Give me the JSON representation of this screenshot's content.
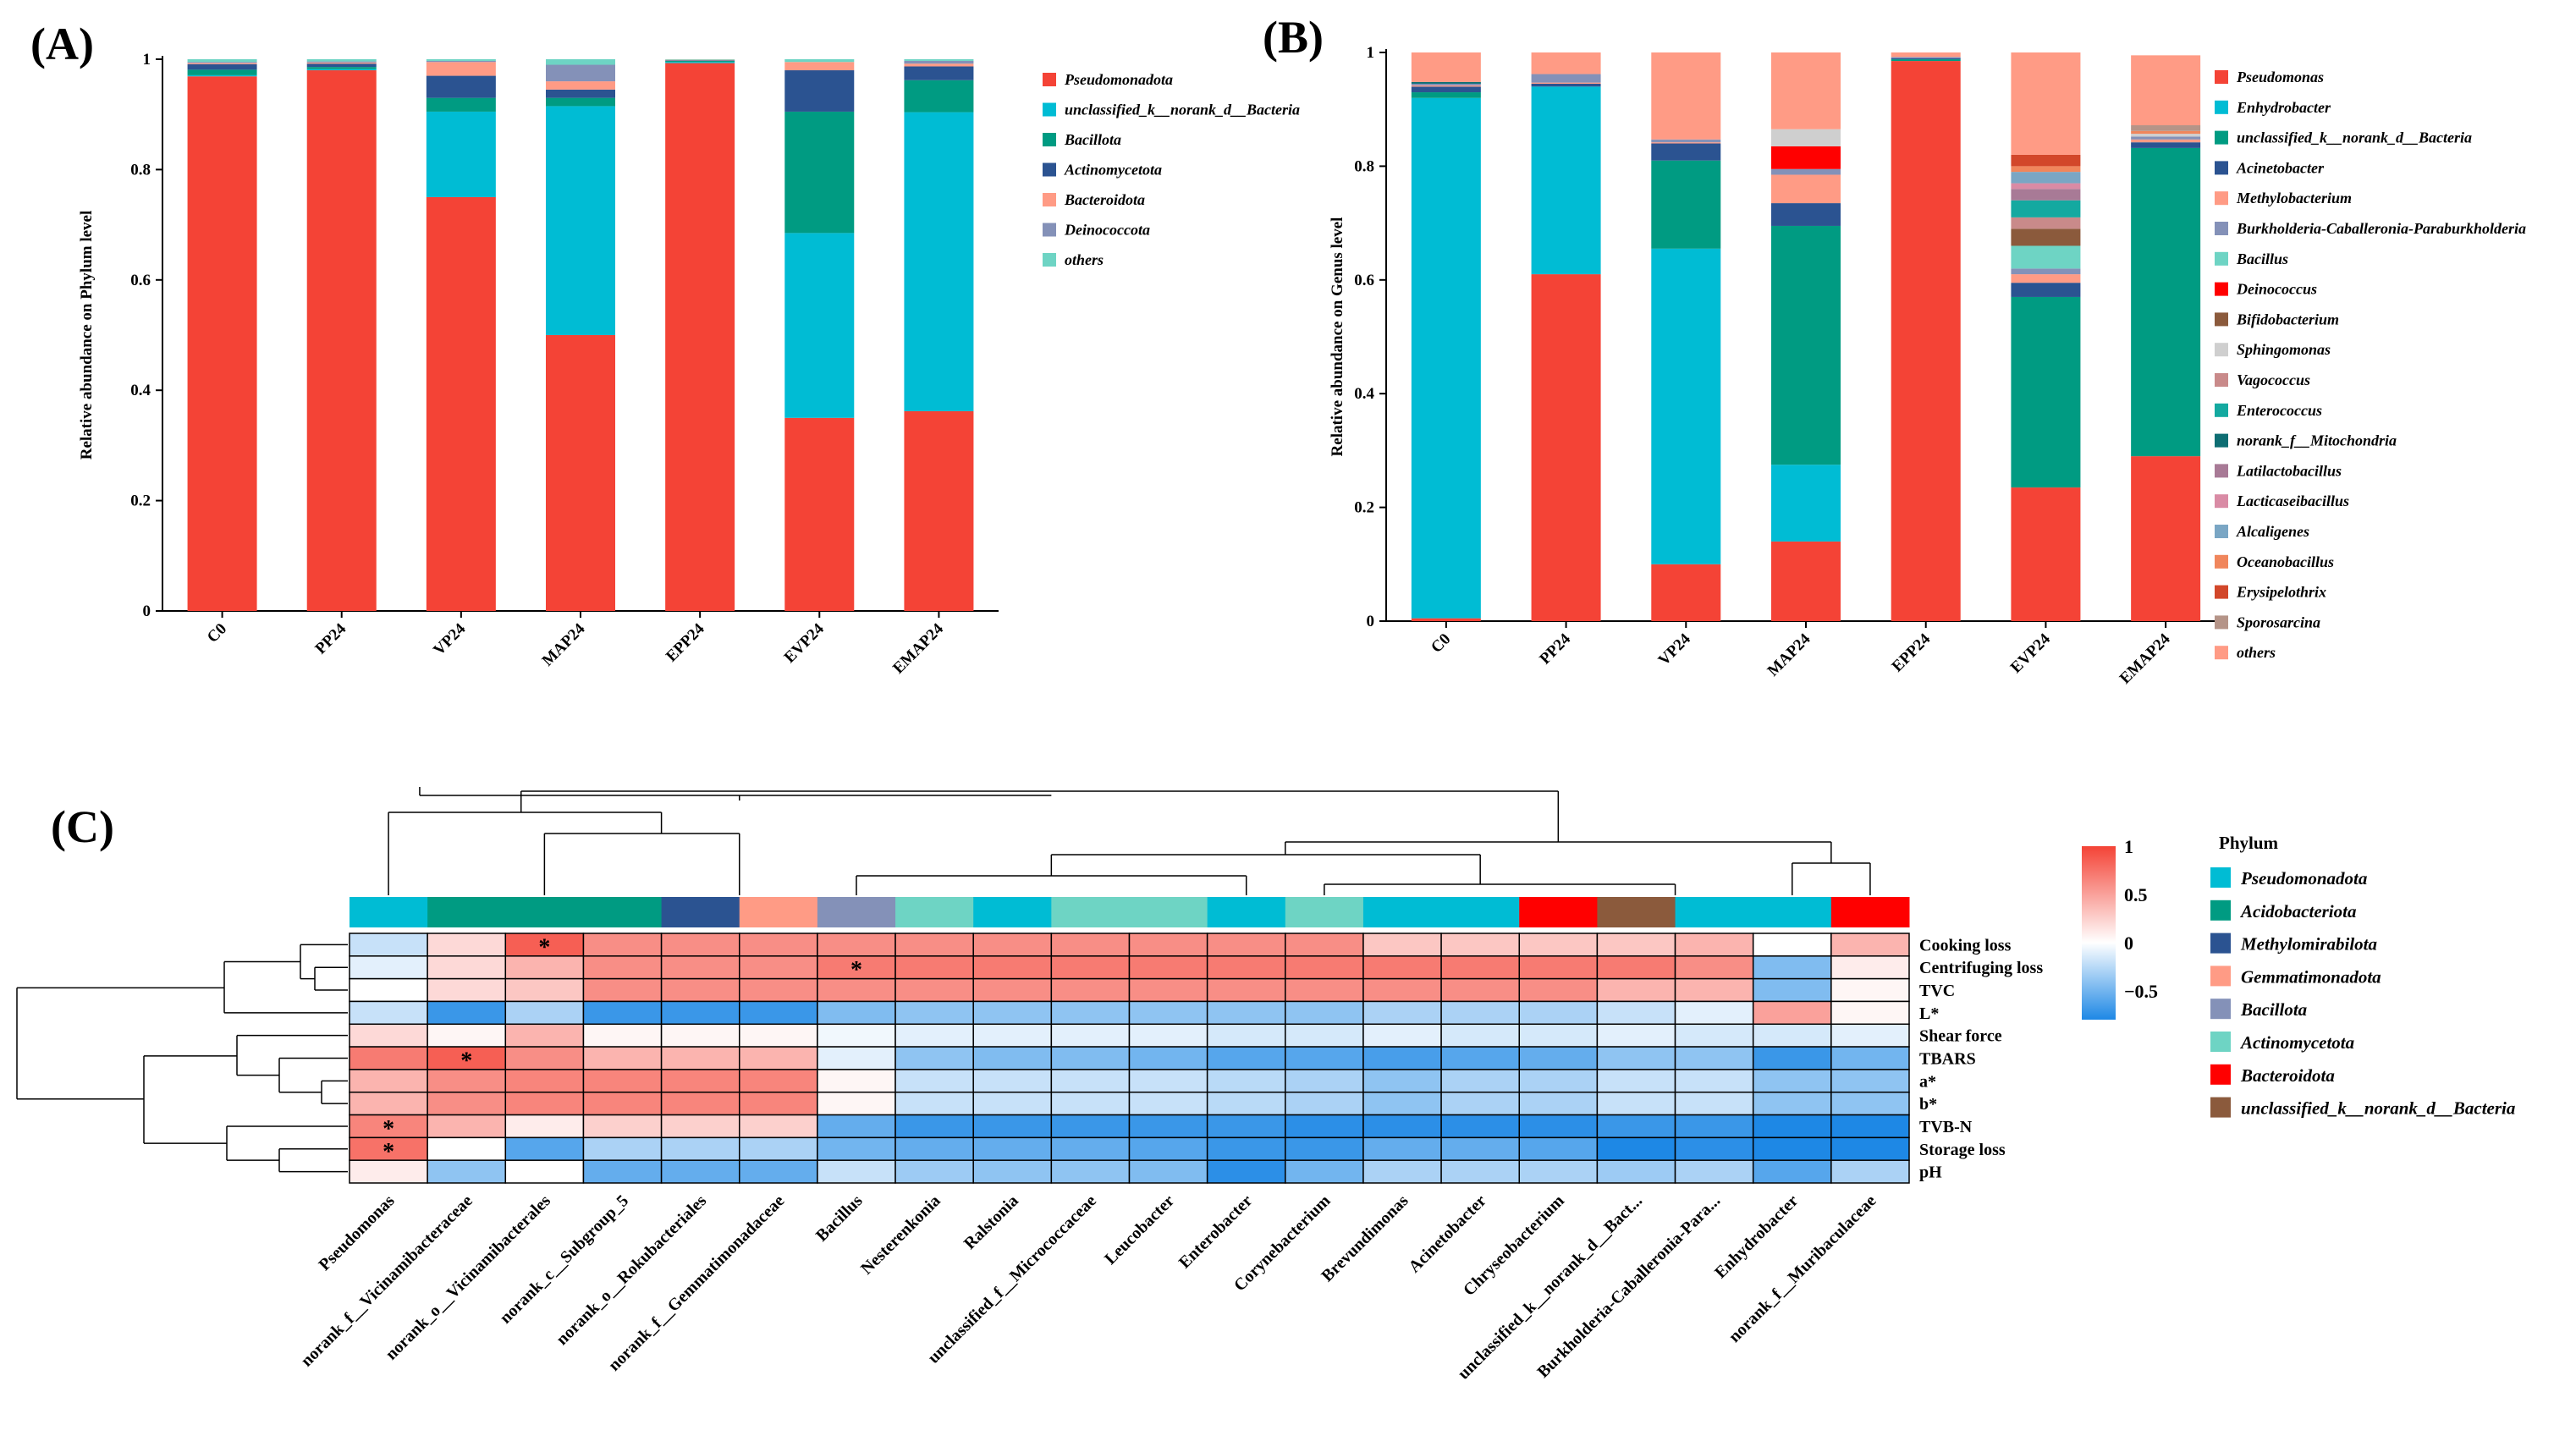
{
  "panels": {
    "a_label": "(A)",
    "b_label": "(B)",
    "c_label": "(C)"
  },
  "chart_data": [
    {
      "id": "A",
      "type": "bar",
      "stacked": true,
      "ylabel": "Relative abundance on Phylum level",
      "ylim": [
        0,
        1
      ],
      "yticks": [
        0,
        0.2,
        0.4,
        0.6,
        0.8,
        1
      ],
      "ytick_labels": [
        "0",
        "0.2",
        "0.4",
        "0.6",
        "0.8",
        "1"
      ],
      "categories": [
        "C0",
        "PP24",
        "VP24",
        "MAP24",
        "EPP24",
        "EVP24",
        "EMAP24"
      ],
      "legend_position": "right",
      "series": [
        {
          "name": "Pseudomonadota",
          "color": "#F44336",
          "values": [
            0.969,
            0.98,
            0.75,
            0.5,
            0.993,
            0.35,
            0.362
          ]
        },
        {
          "name": "unclassified_k__norank_d__Bacteria",
          "color": "#00BCD4",
          "values": [
            0.002,
            0.002,
            0.155,
            0.415,
            0.002,
            0.335,
            0.542
          ]
        },
        {
          "name": "Bacillota",
          "color": "#009B82",
          "values": [
            0.01,
            0.004,
            0.025,
            0.015,
            0.002,
            0.22,
            0.058
          ]
        },
        {
          "name": "Actinomycetota",
          "color": "#2B5391",
          "values": [
            0.01,
            0.006,
            0.04,
            0.015,
            0.001,
            0.075,
            0.025
          ]
        },
        {
          "name": "Bacteroidota",
          "color": "#FF9B85",
          "values": [
            0.002,
            0.002,
            0.025,
            0.015,
            0.001,
            0.015,
            0.005
          ]
        },
        {
          "name": "Deinococcota",
          "color": "#8491B8",
          "values": [
            0.002,
            0.002,
            0.002,
            0.03,
            0.0,
            0.0,
            0.005
          ]
        },
        {
          "name": "others",
          "color": "#6ED4C4",
          "values": [
            0.005,
            0.004,
            0.003,
            0.01,
            0.001,
            0.005,
            0.003
          ]
        }
      ]
    },
    {
      "id": "B",
      "type": "bar",
      "stacked": true,
      "ylabel": "Relative abundance on Genus level",
      "ylim": [
        0,
        1
      ],
      "yticks": [
        0,
        0.2,
        0.4,
        0.6,
        0.8,
        1
      ],
      "ytick_labels": [
        "0",
        "0.2",
        "0.4",
        "0.6",
        "0.8",
        "1"
      ],
      "categories": [
        "C0",
        "PP24",
        "VP24",
        "MAP24",
        "EPP24",
        "EVP24",
        "EMAP24"
      ],
      "legend_position": "right",
      "series": [
        {
          "name": "Pseudomonas",
          "color": "#F44336",
          "values": [
            0.005,
            0.61,
            0.1,
            0.14,
            0.985,
            0.235,
            0.29
          ]
        },
        {
          "name": "Enhydrobacter",
          "color": "#00BCD4",
          "values": [
            0.915,
            0.33,
            0.555,
            0.135,
            0.0,
            0.0,
            0.0
          ]
        },
        {
          "name": "unclassified_k__norank_d__Bacteria",
          "color": "#009B82",
          "values": [
            0.01,
            0.0,
            0.155,
            0.42,
            0.003,
            0.335,
            0.542
          ]
        },
        {
          "name": "Acinetobacter",
          "color": "#2B5391",
          "values": [
            0.01,
            0.005,
            0.03,
            0.04,
            0.002,
            0.025,
            0.01
          ]
        },
        {
          "name": "Methylobacterium",
          "color": "#FF9B85",
          "values": [
            0.002,
            0.002,
            0.002,
            0.05,
            0.0,
            0.015,
            0.005
          ]
        },
        {
          "name": "Burkholderia-Caballeronia-Paraburkholderia",
          "color": "#8491B8",
          "values": [
            0.003,
            0.015,
            0.005,
            0.01,
            0.002,
            0.01,
            0.005
          ]
        },
        {
          "name": "Bacillus",
          "color": "#6ED4C4",
          "values": [
            0.0,
            0.0,
            0.0,
            0.0,
            0.0,
            0.04,
            0.0
          ]
        },
        {
          "name": "Deinococcus",
          "color": "#FF0000",
          "values": [
            0.0,
            0.0,
            0.0,
            0.04,
            0.0,
            0.0,
            0.0
          ]
        },
        {
          "name": "Bifidobacterium",
          "color": "#8B5A3C",
          "values": [
            0.0,
            0.0,
            0.0,
            0.0,
            0.0,
            0.03,
            0.0
          ]
        },
        {
          "name": "Sphingomonas",
          "color": "#CFCFCF",
          "values": [
            0.0,
            0.0,
            0.0,
            0.03,
            0.0,
            0.0,
            0.005
          ]
        },
        {
          "name": "Vagococcus",
          "color": "#C98A8A",
          "values": [
            0.0,
            0.0,
            0.0,
            0.0,
            0.0,
            0.02,
            0.0
          ]
        },
        {
          "name": "Enterococcus",
          "color": "#14A9A0",
          "values": [
            0.0,
            0.0,
            0.0,
            0.0,
            0.0,
            0.03,
            0.0
          ]
        },
        {
          "name": "norank_f__Mitochondria",
          "color": "#0E6E73",
          "values": [
            0.003,
            0.0,
            0.0,
            0.0,
            0.0,
            0.0,
            0.0
          ]
        },
        {
          "name": "Latilactobacillus",
          "color": "#A87A96",
          "values": [
            0.0,
            0.0,
            0.0,
            0.0,
            0.0,
            0.02,
            0.0
          ]
        },
        {
          "name": "Lacticaseibacillus",
          "color": "#D98BA5",
          "values": [
            0.0,
            0.0,
            0.0,
            0.0,
            0.0,
            0.01,
            0.0
          ]
        },
        {
          "name": "Alcaligenes",
          "color": "#7AA6C4",
          "values": [
            0.0,
            0.0,
            0.0,
            0.0,
            0.0,
            0.02,
            0.0
          ]
        },
        {
          "name": "Oceanobacillus",
          "color": "#F0865C",
          "values": [
            0.0,
            0.0,
            0.0,
            0.0,
            0.0,
            0.01,
            0.005
          ]
        },
        {
          "name": "Erysipelothrix",
          "color": "#D2472A",
          "values": [
            0.0,
            0.0,
            0.0,
            0.0,
            0.0,
            0.02,
            0.0
          ]
        },
        {
          "name": "Sporosarcina",
          "color": "#B59488",
          "values": [
            0.0,
            0.0,
            0.0,
            0.0,
            0.0,
            0.0,
            0.01
          ]
        },
        {
          "name": "others",
          "color": "#FF9B85",
          "values": [
            0.052,
            0.038,
            0.153,
            0.135,
            0.008,
            0.18,
            0.123
          ]
        }
      ]
    },
    {
      "id": "C",
      "type": "heatmap",
      "columns": [
        "Pseudomonas",
        "norank_f__Vicinamibacteraceae",
        "norank_o__Vicinamibacterales",
        "norank_c__Subgroup_5",
        "norank_o__Rokubacteriales",
        "norank_f__Gemmatimonadaceae",
        "Bacillus",
        "Nesterenkonia",
        "Ralstonia",
        "unclassified_f__Micrococcaceae",
        "Leucobacter",
        "Enterobacter",
        "Corynebacterium",
        "Brevundimonas",
        "Acinetobacter",
        "Chryseobacterium",
        "unclassified_k__norank_d__Bact...",
        "Burkholderia-Caballeronia-Para...",
        "Enhydrobacter",
        "norank_f__Muribaculaceae"
      ],
      "column_phylum": [
        "Pseudomonadota",
        "Acidobacteriota",
        "Acidobacteriota",
        "Acidobacteriota",
        "Methylomirabilota",
        "Gemmatimonadota",
        "Bacillota",
        "Actinomycetota",
        "Pseudomonadota",
        "Actinomycetota",
        "Actinomycetota",
        "Pseudomonadota",
        "Actinomycetota",
        "Pseudomonadota",
        "Pseudomonadota",
        "Bacteroidota",
        "unclassified_k__norank_d__Bacteria",
        "Pseudomonadota",
        "Pseudomonadota",
        "Bacteroidota"
      ],
      "rows": [
        "Cooking loss",
        "Centrifuging loss",
        "TVC",
        "L*",
        "Shear force",
        "TBARS",
        "a*",
        "b*",
        "TVB-N",
        "Storage loss",
        "pH"
      ],
      "values": [
        [
          -0.2,
          0.2,
          0.85,
          0.6,
          0.6,
          0.6,
          0.6,
          0.6,
          0.6,
          0.6,
          0.6,
          0.6,
          0.6,
          0.3,
          0.3,
          0.3,
          0.3,
          0.4,
          0.0,
          0.4
        ],
        [
          -0.1,
          0.2,
          0.4,
          0.6,
          0.6,
          0.6,
          0.7,
          0.7,
          0.7,
          0.7,
          0.7,
          0.7,
          0.7,
          0.7,
          0.7,
          0.7,
          0.7,
          0.6,
          -0.45,
          0.1
        ],
        [
          0.0,
          0.2,
          0.3,
          0.6,
          0.6,
          0.6,
          0.6,
          0.6,
          0.6,
          0.6,
          0.6,
          0.6,
          0.6,
          0.6,
          0.6,
          0.6,
          0.4,
          0.4,
          -0.45,
          0.05
        ],
        [
          -0.2,
          -0.7,
          -0.3,
          -0.7,
          -0.7,
          -0.7,
          -0.45,
          -0.4,
          -0.4,
          -0.4,
          -0.4,
          -0.4,
          -0.4,
          -0.3,
          -0.3,
          -0.3,
          -0.2,
          -0.1,
          0.5,
          0.05
        ],
        [
          0.2,
          0.05,
          0.4,
          0.05,
          0.05,
          0.05,
          -0.05,
          -0.1,
          -0.1,
          -0.1,
          -0.1,
          -0.15,
          -0.15,
          -0.1,
          -0.15,
          -0.15,
          -0.1,
          -0.15,
          -0.15,
          -0.1
        ],
        [
          0.7,
          0.85,
          0.6,
          0.4,
          0.4,
          0.4,
          -0.1,
          -0.4,
          -0.45,
          -0.45,
          -0.5,
          -0.6,
          -0.6,
          -0.65,
          -0.6,
          -0.55,
          -0.4,
          -0.4,
          -0.7,
          -0.5
        ],
        [
          0.4,
          0.6,
          0.65,
          0.65,
          0.65,
          0.65,
          0.05,
          -0.2,
          -0.2,
          -0.2,
          -0.2,
          -0.25,
          -0.3,
          -0.4,
          -0.3,
          -0.3,
          -0.2,
          -0.2,
          -0.4,
          -0.4
        ],
        [
          0.4,
          0.6,
          0.65,
          0.65,
          0.65,
          0.65,
          0.05,
          -0.2,
          -0.2,
          -0.2,
          -0.2,
          -0.25,
          -0.3,
          -0.4,
          -0.3,
          -0.3,
          -0.2,
          -0.2,
          -0.4,
          -0.4
        ],
        [
          0.65,
          0.4,
          0.1,
          0.25,
          0.25,
          0.25,
          -0.55,
          -0.7,
          -0.7,
          -0.7,
          -0.7,
          -0.7,
          -0.75,
          -0.75,
          -0.75,
          -0.75,
          -0.7,
          -0.7,
          -0.8,
          -0.8
        ],
        [
          0.75,
          0.0,
          -0.6,
          -0.3,
          -0.3,
          -0.3,
          -0.5,
          -0.55,
          -0.55,
          -0.55,
          -0.6,
          -0.7,
          -0.7,
          -0.55,
          -0.55,
          -0.6,
          -0.8,
          -0.75,
          -0.85,
          -0.85
        ],
        [
          0.1,
          -0.4,
          0.0,
          -0.55,
          -0.55,
          -0.55,
          -0.2,
          -0.35,
          -0.4,
          -0.4,
          -0.45,
          -0.75,
          -0.5,
          -0.3,
          -0.3,
          -0.3,
          -0.35,
          -0.3,
          -0.6,
          -0.3
        ]
      ],
      "significance": [
        {
          "row": 0,
          "col": 2,
          "mark": "*"
        },
        {
          "row": 1,
          "col": 6,
          "mark": "*"
        },
        {
          "row": 5,
          "col": 1,
          "mark": "*"
        },
        {
          "row": 8,
          "col": 0,
          "mark": "*"
        },
        {
          "row": 9,
          "col": 0,
          "mark": "*"
        }
      ],
      "colorbar": {
        "ticks": [
          1,
          0.5,
          0,
          -0.5
        ],
        "tick_labels": [
          "1",
          "0.5",
          "0",
          "−0.5"
        ],
        "range": [
          -0.8,
          1
        ],
        "low_color": "#1E88E5",
        "mid_color": "#FFFFFF",
        "high_color": "#F44336"
      },
      "phylum_legend": {
        "title": "Phylum",
        "items": [
          {
            "name": "Pseudomonadota",
            "color": "#00BCD4"
          },
          {
            "name": "Acidobacteriota",
            "color": "#009B82"
          },
          {
            "name": "Methylomirabilota",
            "color": "#2B5391"
          },
          {
            "name": "Gemmatimonadota",
            "color": "#FF9B85"
          },
          {
            "name": "Bacillota",
            "color": "#8491B8"
          },
          {
            "name": "Actinomycetota",
            "color": "#6ED4C4"
          },
          {
            "name": "Bacteroidota",
            "color": "#FF0000"
          },
          {
            "name": "unclassified_k__norank_d__Bacteria",
            "color": "#8B5A3C"
          }
        ]
      }
    }
  ]
}
